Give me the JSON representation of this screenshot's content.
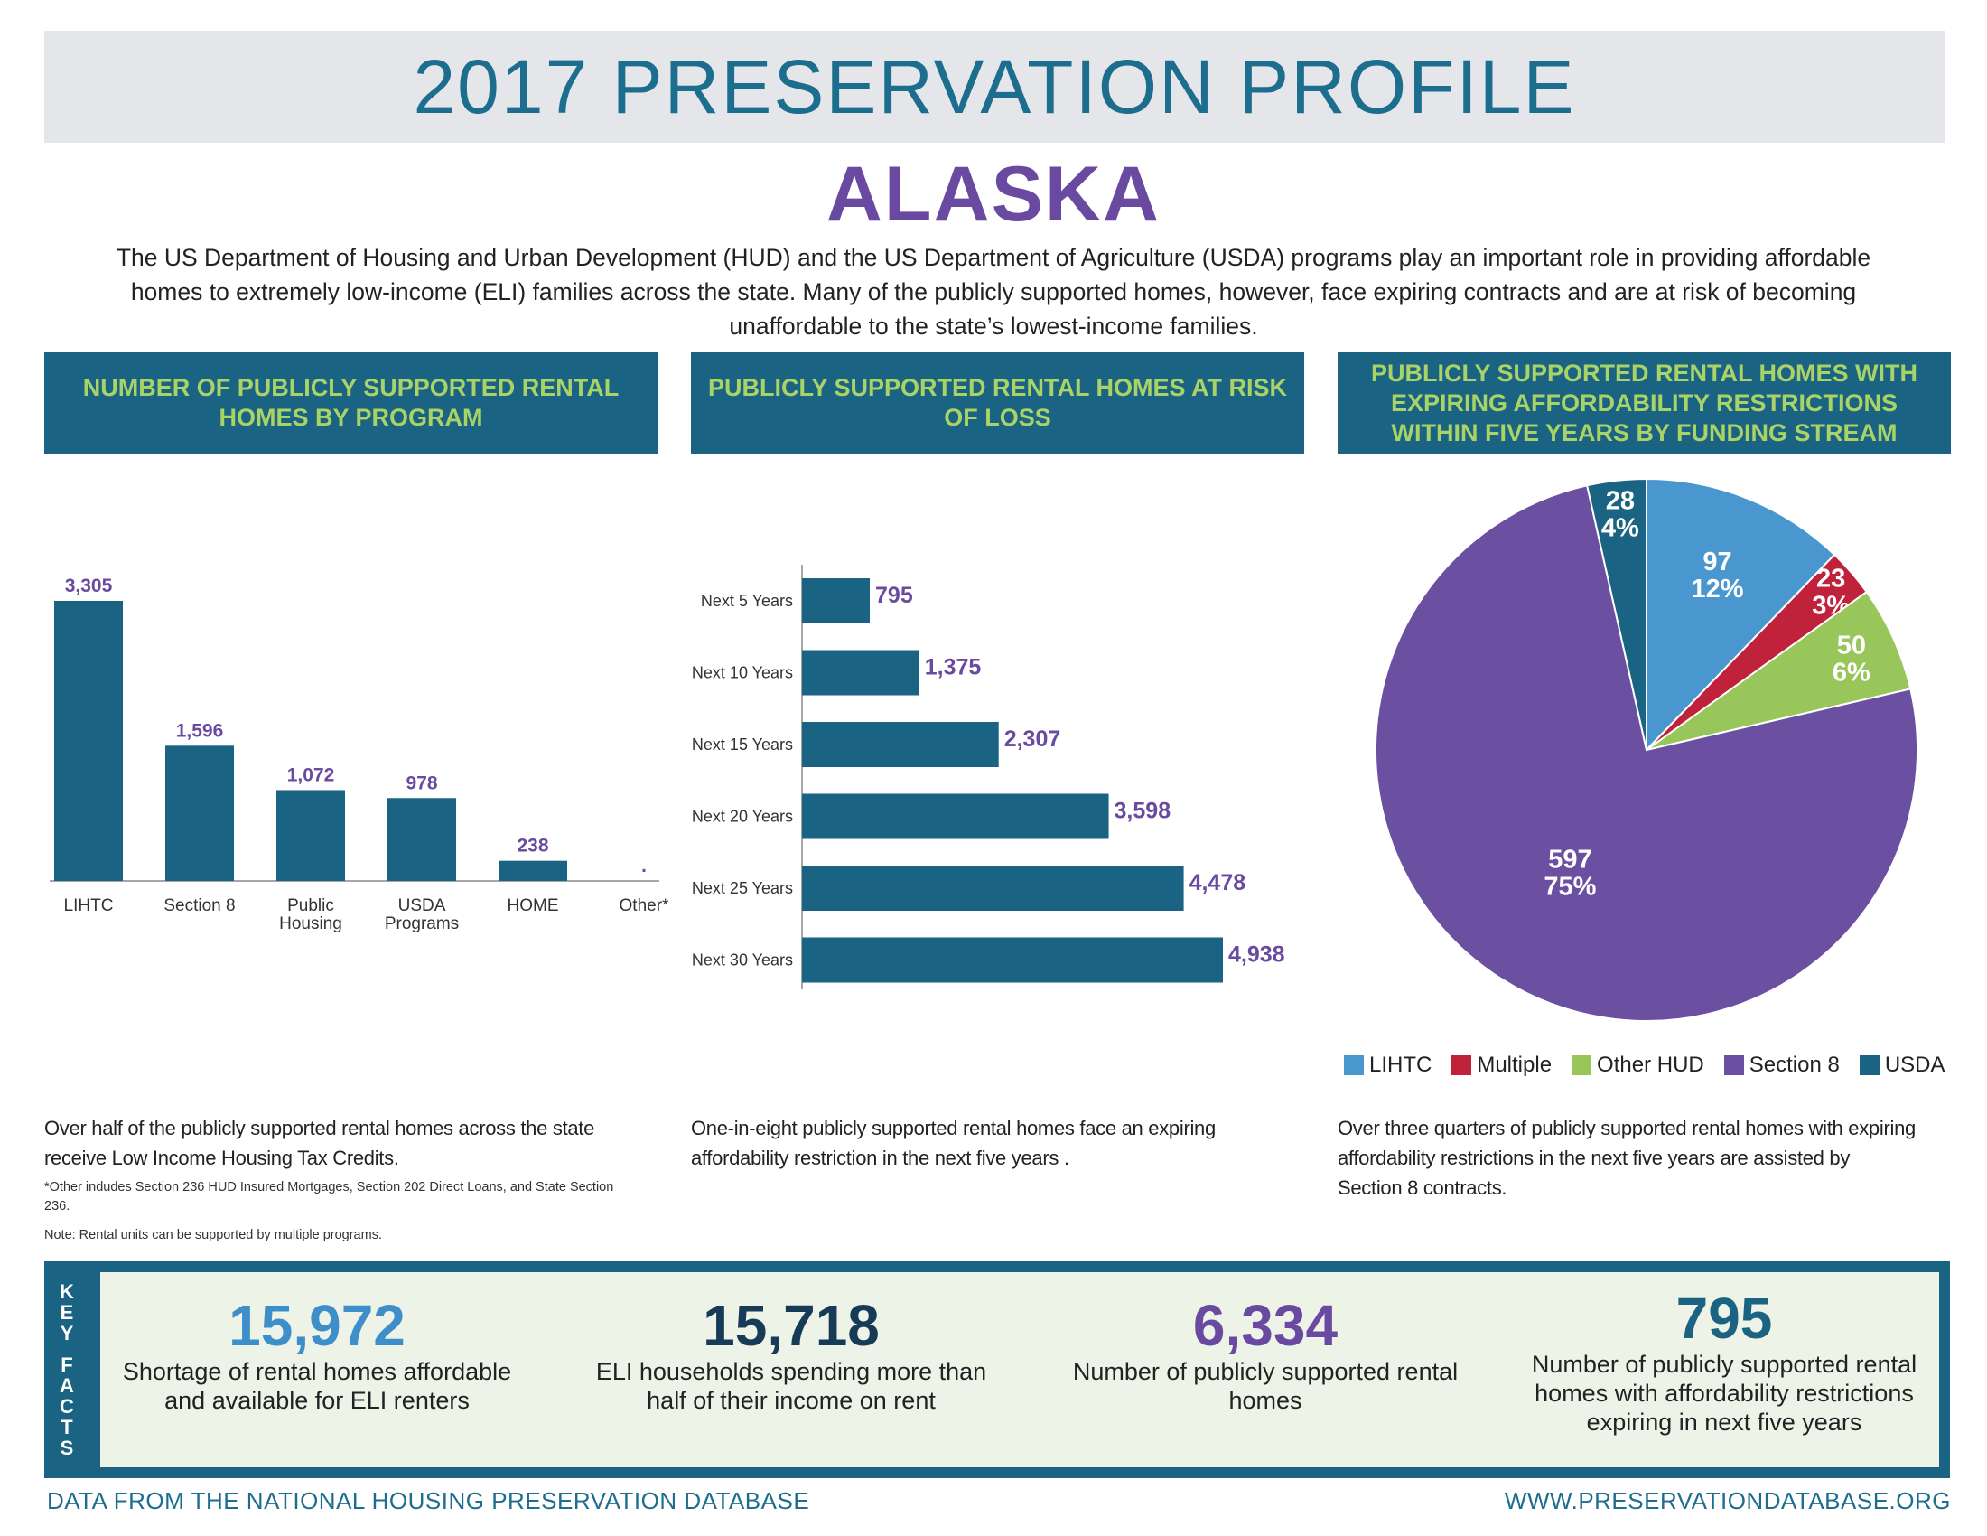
{
  "header": {
    "title": "2017 PRESERVATION PROFILE",
    "state": "ALASKA"
  },
  "intro": "The US Department of Housing and Urban Development (HUD) and the US Department of Agriculture (USDA) programs play an important role in providing affordable homes to extremely low-income (ELI) families across the state. Many of the publicly supported homes, however, face expiring contracts and are at risk of becoming unaffordable to the state’s lowest-income families.",
  "panels": [
    {
      "heading": "NUMBER OF PUBLICLY SUPPORTED RENTAL HOMES BY PROGRAM",
      "caption": "Over half of the publicly supported rental homes across the state receive Low Income Housing Tax Credits.",
      "footnote": "*Other indudes Section 236 HUD Insured Mortgages, Section 202 Direct Loans, and State Section 236.",
      "note": "Note: Rental units can be supported by multiple programs."
    },
    {
      "heading": "PUBLICLY SUPPORTED RENTAL HOMES AT RISK OF LOSS",
      "caption": "One-in-eight publicly supported rental homes face an expiring affordability restriction in the next five years ."
    },
    {
      "heading": "PUBLICLY SUPPORTED RENTAL HOMES WITH EXPIRING AFFORDABILITY RESTRICTIONS WITHIN FIVE YEARS BY FUNDING STREAM",
      "caption": "Over three quarters of publicly supported rental homes with expiring affordability restrictions in the next five years are assisted by Section 8 contracts."
    }
  ],
  "chart_data": [
    {
      "type": "bar",
      "categories": [
        "LIHTC",
        "Section 8",
        "Public Housing",
        "USDA Programs",
        "HOME",
        "Other*"
      ],
      "values": [
        3305,
        1596,
        1072,
        978,
        238,
        null
      ],
      "data_labels": [
        "3,305",
        "1,596",
        "1,072",
        "978",
        "238",
        "."
      ],
      "bar_color": "#1b6382",
      "label_color": "#6a4aa0"
    },
    {
      "type": "bar",
      "orientation": "horizontal",
      "categories": [
        "Next 5 Years",
        "Next 10 Years",
        "Next 15 Years",
        "Next 20 Years",
        "Next 25 Years",
        "Next 30 Years"
      ],
      "values": [
        795,
        1375,
        2307,
        3598,
        4478,
        4938
      ],
      "data_labels": [
        "795",
        "1,375",
        "2,307",
        "3,598",
        "4,478",
        "4,938"
      ],
      "bar_color": "#1b6382",
      "label_color": "#6a4aa0"
    },
    {
      "type": "pie",
      "slices": [
        {
          "name": "LIHTC",
          "value": 97,
          "percent": "12%",
          "color": "#4a97cf"
        },
        {
          "name": "Multiple",
          "value": 23,
          "percent": "3%",
          "color": "#c0223b"
        },
        {
          "name": "Other HUD",
          "value": 50,
          "percent": "6%",
          "color": "#98c65a"
        },
        {
          "name": "Section 8",
          "value": 597,
          "percent": "75%",
          "color": "#6b4fa0"
        },
        {
          "name": "USDA",
          "value": 28,
          "percent": "4%",
          "color": "#1b6382"
        }
      ],
      "legend_position": "bottom"
    }
  ],
  "key_facts": {
    "label": "KEY FACTS",
    "items": [
      {
        "number": "15,972",
        "text": "Shortage of rental homes affordable and available for ELI renters",
        "color": "#3d8ec9"
      },
      {
        "number": "15,718",
        "text": "ELI households spending more than half of their income on rent",
        "color": "#173a57"
      },
      {
        "number": "6,334",
        "text": "Number of publicly supported rental homes",
        "color": "#6a4aa0"
      },
      {
        "number": "795",
        "text": "Number of publicly supported rental homes with affordability restrictions expiring in next five years",
        "color": "#1b6382"
      }
    ]
  },
  "footer": {
    "left": "DATA FROM THE NATIONAL HOUSING PRESERVATION DATABASE",
    "right": "WWW.PRESERVATIONDATABASE.ORG"
  }
}
